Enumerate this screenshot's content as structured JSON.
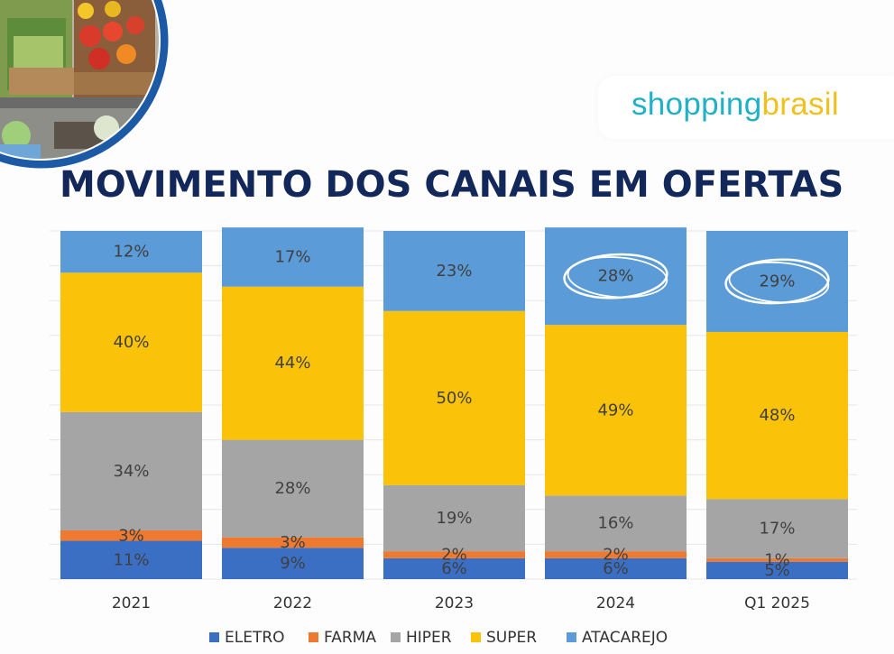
{
  "header": {
    "logo_part1": "shopping",
    "logo_part2": "brasil",
    "title": "MOVIMENTO DOS CANAIS EM OFERTAS"
  },
  "chart_data": {
    "type": "bar",
    "stacked": true,
    "normalized_percent": true,
    "categories": [
      "2021",
      "2022",
      "2023",
      "2024",
      "Q1 2025"
    ],
    "series": [
      {
        "name": "ELETRO",
        "color": "#3a6fc4",
        "values": [
          11,
          9,
          6,
          6,
          5
        ],
        "labels": [
          "11%",
          "9%",
          "6%",
          "6%",
          "5%"
        ]
      },
      {
        "name": "FARMA",
        "color": "#ed7a30",
        "values": [
          3,
          3,
          2,
          2,
          1
        ],
        "labels": [
          "3%",
          "3%",
          "2%",
          "2%",
          "1%"
        ]
      },
      {
        "name": "HIPER",
        "color": "#a5a5a5",
        "values": [
          34,
          28,
          19,
          16,
          17
        ],
        "labels": [
          "34%",
          "28%",
          "19%",
          "16%",
          "17%"
        ]
      },
      {
        "name": "SUPER",
        "color": "#fbc20a",
        "values": [
          40,
          44,
          50,
          49,
          48
        ],
        "labels": [
          "40%",
          "44%",
          "50%",
          "49%",
          "48%"
        ]
      },
      {
        "name": "ATACAREJO",
        "color": "#5a9bd8",
        "values": [
          12,
          17,
          23,
          28,
          29
        ],
        "labels": [
          "12%",
          "17%",
          "23%",
          "28%",
          "29%"
        ]
      }
    ],
    "highlighted": [
      {
        "category": "2024",
        "series": "ATACAREJO"
      },
      {
        "category": "Q1 2025",
        "series": "ATACAREJO"
      }
    ],
    "ylim": [
      0,
      100
    ],
    "legend": "bottom",
    "grid": true,
    "colors": {
      "circle": "#ffffff"
    }
  }
}
